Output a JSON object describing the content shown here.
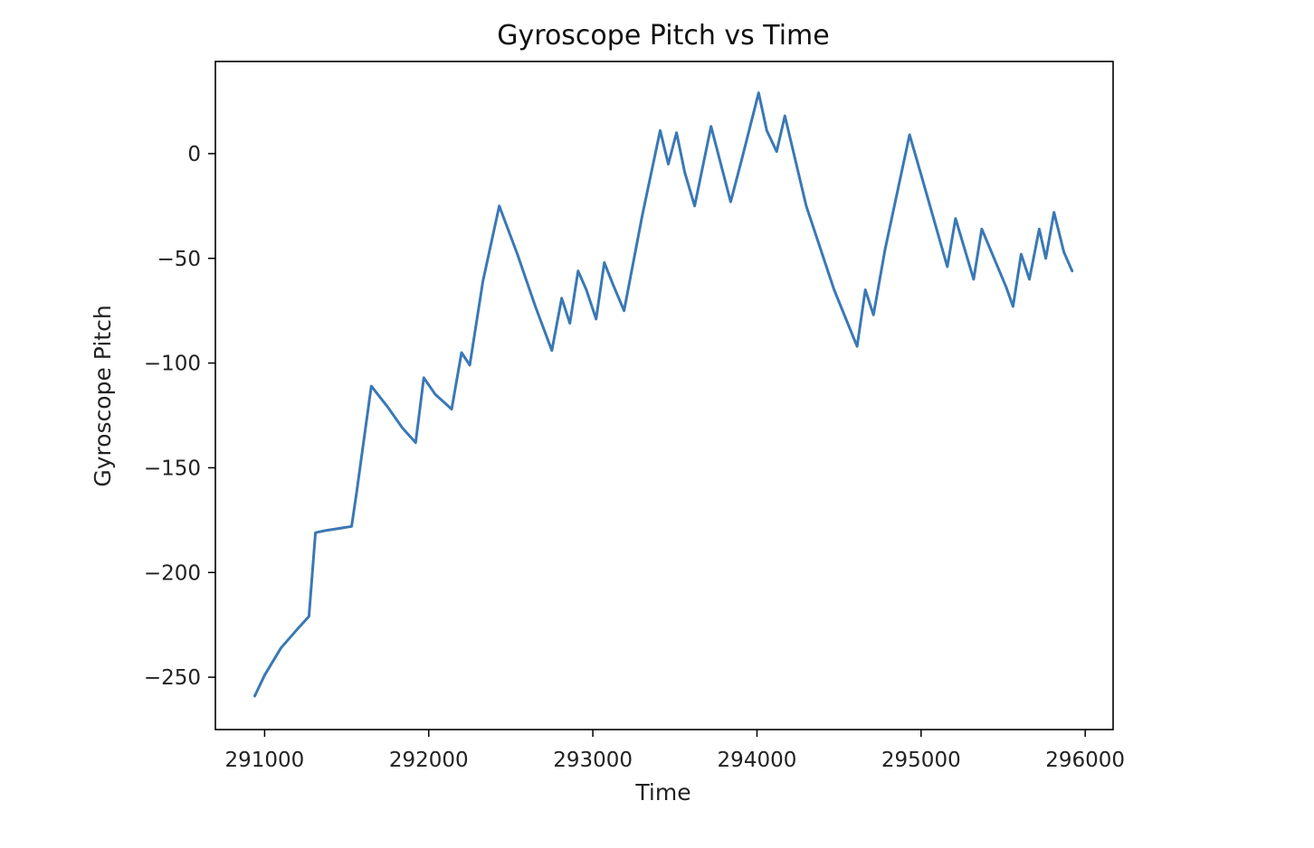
{
  "chart_data": {
    "type": "line",
    "title": "Gyroscope Pitch vs Time",
    "xlabel": "Time",
    "ylabel": "Gyroscope Pitch",
    "xlim": [
      290700,
      296170
    ],
    "ylim": [
      -275,
      44
    ],
    "xticks": [
      291000,
      292000,
      293000,
      294000,
      295000,
      296000
    ],
    "yticks": [
      0,
      -50,
      -100,
      -150,
      -200,
      -250
    ],
    "xtick_labels": [
      "291000",
      "292000",
      "293000",
      "294000",
      "295000",
      "296000"
    ],
    "ytick_labels": [
      "0",
      "−50",
      "−100",
      "−150",
      "−200",
      "−250"
    ],
    "grid": false,
    "line_color": "#3a78b5",
    "series": [
      {
        "x": [
          290940,
          291000,
          291100,
          291200,
          291270,
          291310,
          291370,
          291450,
          291530,
          291560,
          291650,
          291750,
          291840,
          291920,
          291970,
          292040,
          292140,
          292200,
          292250,
          292330,
          292430,
          292540,
          292650,
          292750,
          292810,
          292860,
          292910,
          292960,
          293020,
          293070,
          293120,
          293190,
          293300,
          293410,
          293460,
          293510,
          293560,
          293620,
          293720,
          293840,
          293910,
          294010,
          294060,
          294120,
          294170,
          294300,
          294470,
          294610,
          294660,
          294710,
          294780,
          294930,
          295000,
          295160,
          295210,
          295320,
          295370,
          295520,
          295560,
          295610,
          295660,
          295720,
          295760,
          295810,
          295870,
          295920
        ],
        "y": [
          -259,
          -249,
          -236,
          -227,
          -221,
          -181,
          -180,
          -179,
          -178,
          -162,
          -111,
          -121,
          -131,
          -138,
          -107,
          -115,
          -122,
          -95,
          -101,
          -61,
          -25,
          -48,
          -73,
          -94,
          -69,
          -81,
          -56,
          -65,
          -79,
          -52,
          -62,
          -75,
          -30,
          11,
          -5,
          10,
          -9,
          -25,
          13,
          -23,
          -2,
          29,
          11,
          1,
          18,
          -25,
          -65,
          -92,
          -65,
          -77,
          -46,
          9,
          -10,
          -54,
          -31,
          -60,
          -36,
          -64,
          -73,
          -48,
          -60,
          -36,
          -50,
          -28,
          -47,
          -56
        ]
      }
    ]
  }
}
